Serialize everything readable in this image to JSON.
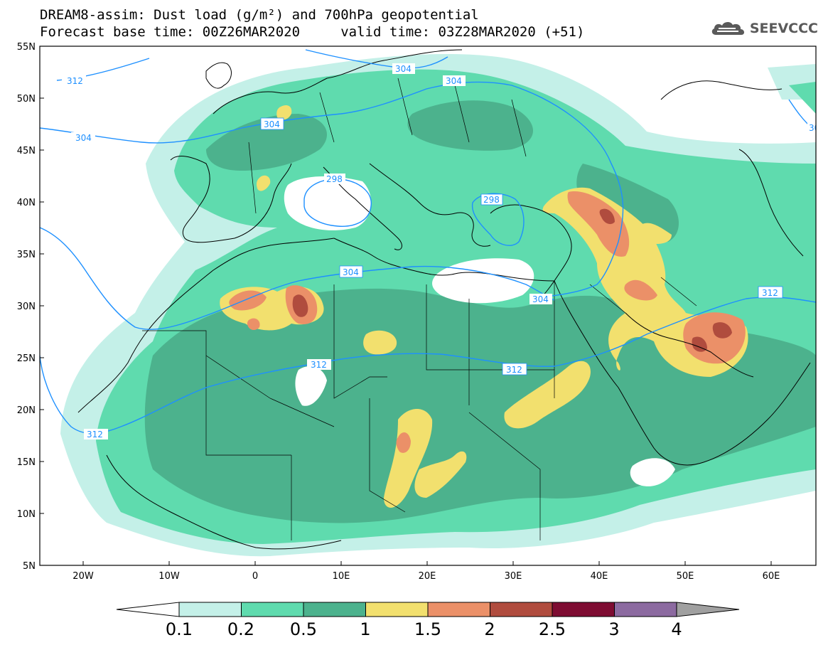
{
  "title_line1": "DREAM8-assim: Dust load (g/m²) and 700hPa geopotential",
  "title_line2": "Forecast base time: 00Z26MAR2020     valid time: 03Z28MAR2020 (+51)",
  "logo_text": "SEEVCCC",
  "lat_ticks": [
    "55N",
    "50N",
    "45N",
    "40N",
    "35N",
    "30N",
    "25N",
    "20N",
    "15N",
    "10N",
    "5N"
  ],
  "lon_ticks": [
    "20W",
    "10W",
    "0",
    "10E",
    "20E",
    "30E",
    "40E",
    "50E",
    "60E"
  ],
  "contour_labels": [
    "312",
    "304",
    "304",
    "304",
    "298",
    "298",
    "304",
    "304",
    "312",
    "312",
    "312",
    "312",
    "30"
  ],
  "colorbar": {
    "levels": [
      "0.1",
      "0.2",
      "0.5",
      "1",
      "1.5",
      "2",
      "2.5",
      "3",
      "4"
    ],
    "colors": [
      "#c4f0e8",
      "#5fdbae",
      "#4cb28d",
      "#f2e06e",
      "#eb9068",
      "#b04c3e",
      "#7e0c32",
      "#8c6aa0",
      "#a0a0a0"
    ]
  },
  "colors": {
    "contour": "#1e90ff",
    "ocean": "#ffffff",
    "border": "#000000"
  }
}
